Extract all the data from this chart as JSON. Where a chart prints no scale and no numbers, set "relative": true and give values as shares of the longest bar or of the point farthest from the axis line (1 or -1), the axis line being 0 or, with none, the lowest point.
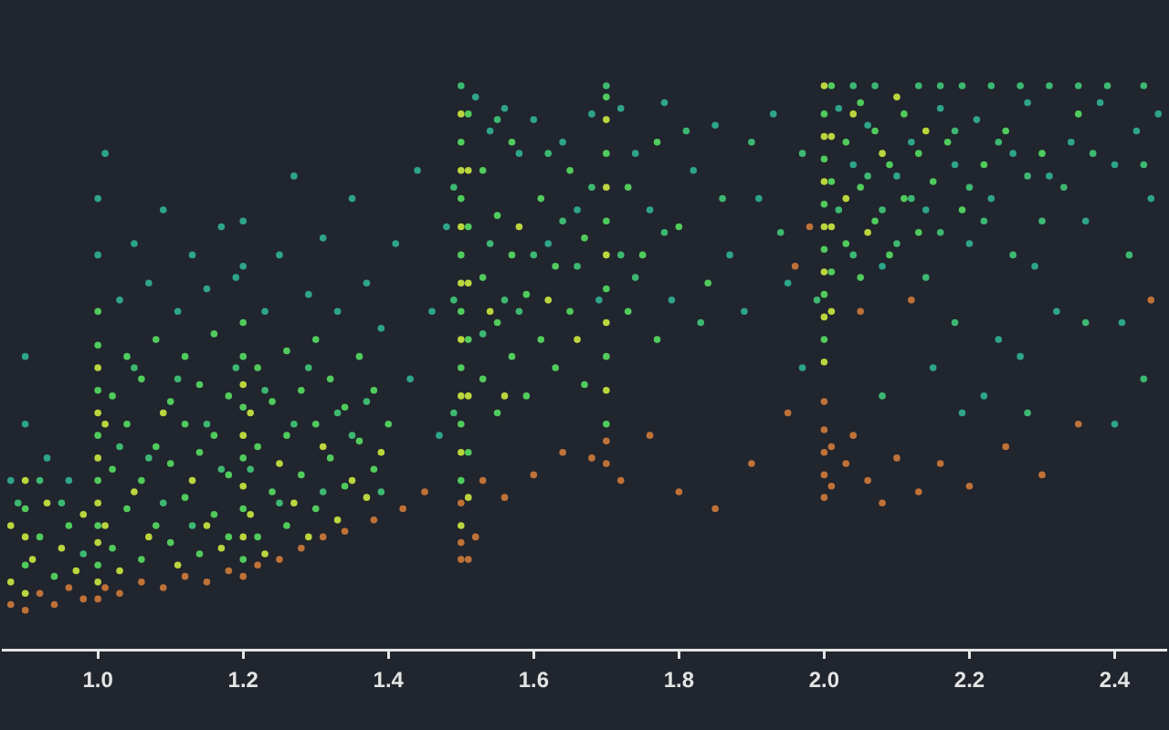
{
  "chart_data": {
    "type": "scatter",
    "relative": true,
    "marker": "circle",
    "xlim": [
      0.87,
      2.47
    ],
    "xticks": [
      {
        "value": 1,
        "label": "1.0"
      },
      1.2,
      1.4,
      1.6,
      1.8,
      {
        "value": 2,
        "label": "2.0"
      },
      2.2,
      2.4
    ],
    "series": [
      {
        "color": "#2ea587",
        "x": [
          0.88,
          0.9,
          0.9,
          0.93,
          0.96,
          1.0,
          1.0,
          1.01,
          1.03,
          1.05,
          1.07,
          1.09,
          1.11,
          1.13,
          1.15,
          1.17,
          1.19,
          1.2,
          1.2,
          1.23,
          1.25,
          1.27,
          1.29,
          1.31,
          1.33,
          1.35,
          1.37,
          1.39,
          1.41,
          1.43,
          1.44,
          1.46,
          1.47,
          1.48,
          1.52,
          1.54,
          1.56,
          1.58,
          1.6,
          1.62,
          1.64,
          1.66,
          1.68,
          1.69,
          1.72,
          1.74,
          1.76,
          1.78,
          1.79,
          1.82,
          1.85,
          1.87,
          1.89,
          1.91,
          1.93,
          1.95,
          1.97,
          2.02,
          2.04,
          2.06,
          2.08,
          2.1,
          2.12,
          2.14,
          2.16,
          2.18,
          2.2,
          2.21,
          2.23,
          2.24,
          2.26,
          2.28,
          2.29,
          2.31,
          2.32,
          2.34,
          2.36,
          2.38,
          2.4,
          2.41,
          2.43,
          2.45,
          2.46,
          2.15,
          2.22,
          2.27,
          2.4,
          2.19
        ],
        "values": [
          0.3,
          0.4,
          0.52,
          0.34,
          0.3,
          0.7,
          0.8,
          0.88,
          0.62,
          0.72,
          0.65,
          0.78,
          0.6,
          0.7,
          0.64,
          0.75,
          0.66,
          0.68,
          0.76,
          0.6,
          0.7,
          0.84,
          0.63,
          0.73,
          0.6,
          0.8,
          0.65,
          0.57,
          0.72,
          0.48,
          0.85,
          0.6,
          0.38,
          0.75,
          0.98,
          0.92,
          0.96,
          0.88,
          0.94,
          0.72,
          0.9,
          0.78,
          0.95,
          0.62,
          0.96,
          0.88,
          0.78,
          0.97,
          0.62,
          0.85,
          0.93,
          0.7,
          0.6,
          0.8,
          0.95,
          0.65,
          0.5,
          0.96,
          0.86,
          0.93,
          0.68,
          0.84,
          0.9,
          0.78,
          0.96,
          0.86,
          0.72,
          0.94,
          0.8,
          0.55,
          0.88,
          0.97,
          0.68,
          0.84,
          0.6,
          0.9,
          0.76,
          0.97,
          0.86,
          0.58,
          0.92,
          0.8,
          0.95,
          0.5,
          0.45,
          0.52,
          0.4,
          0.42
        ]
      },
      {
        "color": "#50cb5c",
        "x": [
          1.0,
          1.0,
          1.0,
          1.0,
          1.0,
          1.0,
          1.0,
          1.02,
          1.02,
          1.02,
          1.04,
          1.04,
          1.04,
          1.06,
          1.06,
          1.06,
          1.08,
          1.08,
          1.08,
          1.1,
          1.1,
          1.1,
          1.12,
          1.12,
          1.12,
          1.14,
          1.14,
          1.14,
          1.16,
          1.16,
          1.16,
          1.18,
          1.18,
          1.18,
          1.2,
          1.2,
          1.2,
          1.2,
          1.2,
          1.2,
          1.22,
          1.22,
          1.22,
          1.24,
          1.24,
          1.26,
          1.26,
          1.26,
          1.28,
          1.28,
          1.3,
          1.3,
          1.3,
          1.32,
          1.32,
          1.34,
          1.34,
          1.36,
          1.36,
          1.38,
          1.38,
          1.4,
          1.5,
          1.5,
          1.5,
          1.5,
          1.5,
          1.5,
          1.5,
          1.51,
          1.51,
          1.51,
          1.51,
          1.53,
          1.53,
          1.53,
          1.55,
          1.55,
          1.55,
          1.57,
          1.57,
          1.57,
          1.59,
          1.59,
          1.61,
          1.61,
          1.63,
          1.63,
          1.65,
          1.65,
          1.67,
          1.67,
          1.7,
          1.7,
          1.7,
          1.7,
          1.7,
          1.7,
          1.73,
          1.73,
          1.75,
          1.77,
          1.77,
          1.8,
          1.84,
          2.0,
          2.0,
          2.0,
          2.0,
          2.0,
          2.0,
          2.01,
          2.01,
          2.01,
          2.03,
          2.03,
          2.05,
          2.05,
          2.05,
          2.07,
          2.07,
          2.09,
          2.09,
          2.11,
          2.11,
          2.13,
          2.13,
          2.15,
          2.17,
          2.19,
          2.22,
          2.25,
          2.3,
          2.35,
          0.9,
          0.9,
          0.92,
          0.94,
          0.96
        ],
        "values": [
          0.15,
          0.22,
          0.3,
          0.38,
          0.46,
          0.54,
          0.6,
          0.18,
          0.32,
          0.45,
          0.25,
          0.4,
          0.52,
          0.16,
          0.3,
          0.48,
          0.22,
          0.36,
          0.55,
          0.19,
          0.33,
          0.44,
          0.27,
          0.4,
          0.52,
          0.17,
          0.35,
          0.47,
          0.24,
          0.38,
          0.56,
          0.2,
          0.31,
          0.45,
          0.16,
          0.25,
          0.34,
          0.43,
          0.52,
          0.58,
          0.2,
          0.36,
          0.5,
          0.28,
          0.44,
          0.22,
          0.38,
          0.53,
          0.31,
          0.46,
          0.25,
          0.4,
          0.55,
          0.34,
          0.48,
          0.29,
          0.43,
          0.37,
          0.52,
          0.32,
          0.46,
          0.4,
          0.3,
          0.4,
          0.5,
          0.6,
          0.7,
          0.8,
          0.9,
          0.35,
          0.55,
          0.75,
          0.95,
          0.48,
          0.66,
          0.85,
          0.42,
          0.58,
          0.77,
          0.52,
          0.7,
          0.9,
          0.45,
          0.63,
          0.55,
          0.8,
          0.5,
          0.68,
          0.6,
          0.85,
          0.47,
          0.73,
          0.4,
          0.52,
          0.64,
          0.76,
          0.88,
          0.98,
          0.6,
          0.82,
          0.7,
          0.55,
          0.9,
          0.75,
          0.65,
          0.55,
          0.63,
          0.71,
          0.79,
          0.87,
          0.95,
          0.67,
          0.83,
          1.0,
          0.72,
          0.9,
          0.66,
          0.82,
          0.97,
          0.76,
          0.92,
          0.7,
          0.86,
          0.8,
          0.95,
          0.74,
          0.88,
          0.83,
          0.9,
          0.78,
          0.86,
          0.92,
          0.88,
          0.95,
          0.15,
          0.25,
          0.2,
          0.13,
          0.22
        ]
      },
      {
        "color": "#bcd53e",
        "x": [
          0.88,
          0.88,
          0.9,
          0.9,
          0.9,
          0.91,
          0.93,
          0.95,
          0.97,
          0.98,
          1.0,
          1.0,
          1.0,
          1.0,
          1.0,
          1.0,
          1.01,
          1.01,
          1.03,
          1.05,
          1.07,
          1.09,
          1.11,
          1.13,
          1.15,
          1.17,
          1.2,
          1.2,
          1.2,
          1.2,
          1.21,
          1.21,
          1.23,
          1.25,
          1.27,
          1.29,
          1.31,
          1.33,
          1.35,
          1.37,
          1.39,
          1.5,
          1.5,
          1.5,
          1.5,
          1.5,
          1.5,
          1.5,
          1.5,
          1.51,
          1.51,
          1.51,
          1.51,
          1.54,
          1.56,
          1.58,
          1.62,
          1.66,
          1.7,
          1.7,
          1.7,
          1.7,
          1.7,
          2.0,
          2.0,
          2.0,
          2.0,
          2.0,
          2.0,
          2.0,
          2.01,
          2.01,
          2.01,
          2.03,
          2.04,
          2.06,
          2.08,
          2.1,
          2.14
        ],
        "values": [
          0.12,
          0.22,
          0.1,
          0.2,
          0.3,
          0.16,
          0.26,
          0.18,
          0.14,
          0.24,
          0.12,
          0.19,
          0.26,
          0.34,
          0.42,
          0.5,
          0.22,
          0.4,
          0.14,
          0.28,
          0.2,
          0.42,
          0.15,
          0.3,
          0.22,
          0.18,
          0.2,
          0.29,
          0.38,
          0.47,
          0.24,
          0.42,
          0.17,
          0.33,
          0.26,
          0.2,
          0.36,
          0.23,
          0.3,
          0.27,
          0.35,
          0.22,
          0.35,
          0.45,
          0.55,
          0.65,
          0.75,
          0.85,
          0.95,
          0.27,
          0.45,
          0.65,
          0.85,
          0.6,
          0.45,
          0.75,
          0.62,
          0.55,
          0.46,
          0.58,
          0.7,
          0.82,
          0.94,
          0.51,
          0.59,
          0.67,
          0.75,
          0.83,
          0.91,
          1.0,
          0.6,
          0.75,
          0.91,
          0.8,
          0.95,
          0.74,
          0.88,
          0.98,
          0.92
        ]
      },
      {
        "color": "#bf7238",
        "x": [
          0.88,
          0.9,
          0.92,
          0.94,
          0.96,
          0.98,
          1.0,
          1.01,
          1.03,
          1.06,
          1.09,
          1.12,
          1.15,
          1.18,
          1.2,
          1.22,
          1.25,
          1.28,
          1.31,
          1.34,
          1.38,
          1.42,
          1.45,
          1.5,
          1.5,
          1.51,
          1.5,
          1.52,
          1.53,
          1.56,
          1.6,
          1.64,
          1.68,
          1.7,
          1.7,
          1.72,
          1.76,
          1.8,
          1.85,
          1.9,
          1.95,
          2.0,
          2.0,
          2.0,
          2.0,
          2.0,
          2.01,
          2.01,
          2.03,
          2.04,
          2.06,
          2.08,
          2.1,
          2.13,
          2.16,
          2.2,
          2.25,
          2.3,
          2.35,
          1.96,
          1.98,
          2.05,
          2.12,
          2.45
        ],
        "values": [
          0.08,
          0.07,
          0.1,
          0.08,
          0.11,
          0.09,
          0.09,
          0.11,
          0.1,
          0.12,
          0.11,
          0.13,
          0.12,
          0.14,
          0.13,
          0.15,
          0.16,
          0.18,
          0.2,
          0.21,
          0.23,
          0.25,
          0.28,
          0.16,
          0.19,
          0.16,
          0.26,
          0.2,
          0.3,
          0.27,
          0.31,
          0.35,
          0.34,
          0.33,
          0.37,
          0.3,
          0.38,
          0.28,
          0.25,
          0.33,
          0.42,
          0.27,
          0.31,
          0.35,
          0.39,
          0.44,
          0.29,
          0.36,
          0.33,
          0.38,
          0.3,
          0.26,
          0.34,
          0.28,
          0.33,
          0.29,
          0.36,
          0.31,
          0.4,
          0.68,
          0.75,
          0.6,
          0.62,
          0.62
        ]
      },
      {
        "color": "#3db872",
        "x": [
          1.5,
          1.7,
          2.04,
          2.07,
          2.13,
          2.16,
          2.19,
          2.23,
          2.27,
          2.31,
          2.35,
          2.39,
          2.44,
          2.02,
          2.04,
          2.06,
          2.08,
          2.1,
          2.12,
          2.14,
          2.16,
          2.18,
          2.2,
          2.22,
          2.24,
          2.26,
          2.28,
          2.3,
          2.33,
          2.37,
          2.42,
          2.44,
          1.49,
          1.49,
          1.49,
          1.03,
          1.05,
          1.07,
          1.09,
          1.11,
          1.13,
          1.15,
          1.17,
          1.19,
          1.21,
          1.23,
          1.25,
          1.27,
          1.29,
          1.31,
          1.33,
          1.35,
          1.37,
          1.39,
          0.89,
          0.92,
          0.95,
          0.98,
          1.54,
          1.56,
          1.58,
          1.6,
          1.62,
          1.64,
          1.66,
          1.68,
          1.53,
          1.55,
          1.72,
          1.74,
          1.78,
          1.81,
          1.83,
          1.86,
          1.9,
          1.94,
          1.97,
          1.99,
          2.08,
          2.18,
          2.28,
          2.36,
          2.44
        ],
        "values": [
          1.0,
          1.0,
          1.0,
          1.0,
          1.0,
          1.0,
          1.0,
          1.0,
          1.0,
          1.0,
          1.0,
          1.0,
          1.0,
          0.78,
          0.7,
          0.84,
          0.78,
          0.72,
          0.8,
          0.66,
          0.74,
          0.92,
          0.82,
          0.76,
          0.9,
          0.7,
          0.84,
          0.76,
          0.82,
          0.88,
          0.7,
          0.86,
          0.42,
          0.62,
          0.82,
          0.36,
          0.5,
          0.34,
          0.26,
          0.48,
          0.22,
          0.4,
          0.32,
          0.5,
          0.32,
          0.46,
          0.26,
          0.4,
          0.5,
          0.28,
          0.42,
          0.38,
          0.44,
          0.28,
          0.26,
          0.3,
          0.26,
          0.17,
          0.72,
          0.62,
          0.6,
          0.7,
          0.88,
          0.76,
          0.68,
          0.82,
          0.56,
          0.94,
          0.7,
          0.66,
          0.74,
          0.92,
          0.58,
          0.8,
          0.9,
          0.74,
          0.88,
          0.62,
          0.45,
          0.58,
          0.42,
          0.58,
          0.48
        ]
      }
    ]
  }
}
